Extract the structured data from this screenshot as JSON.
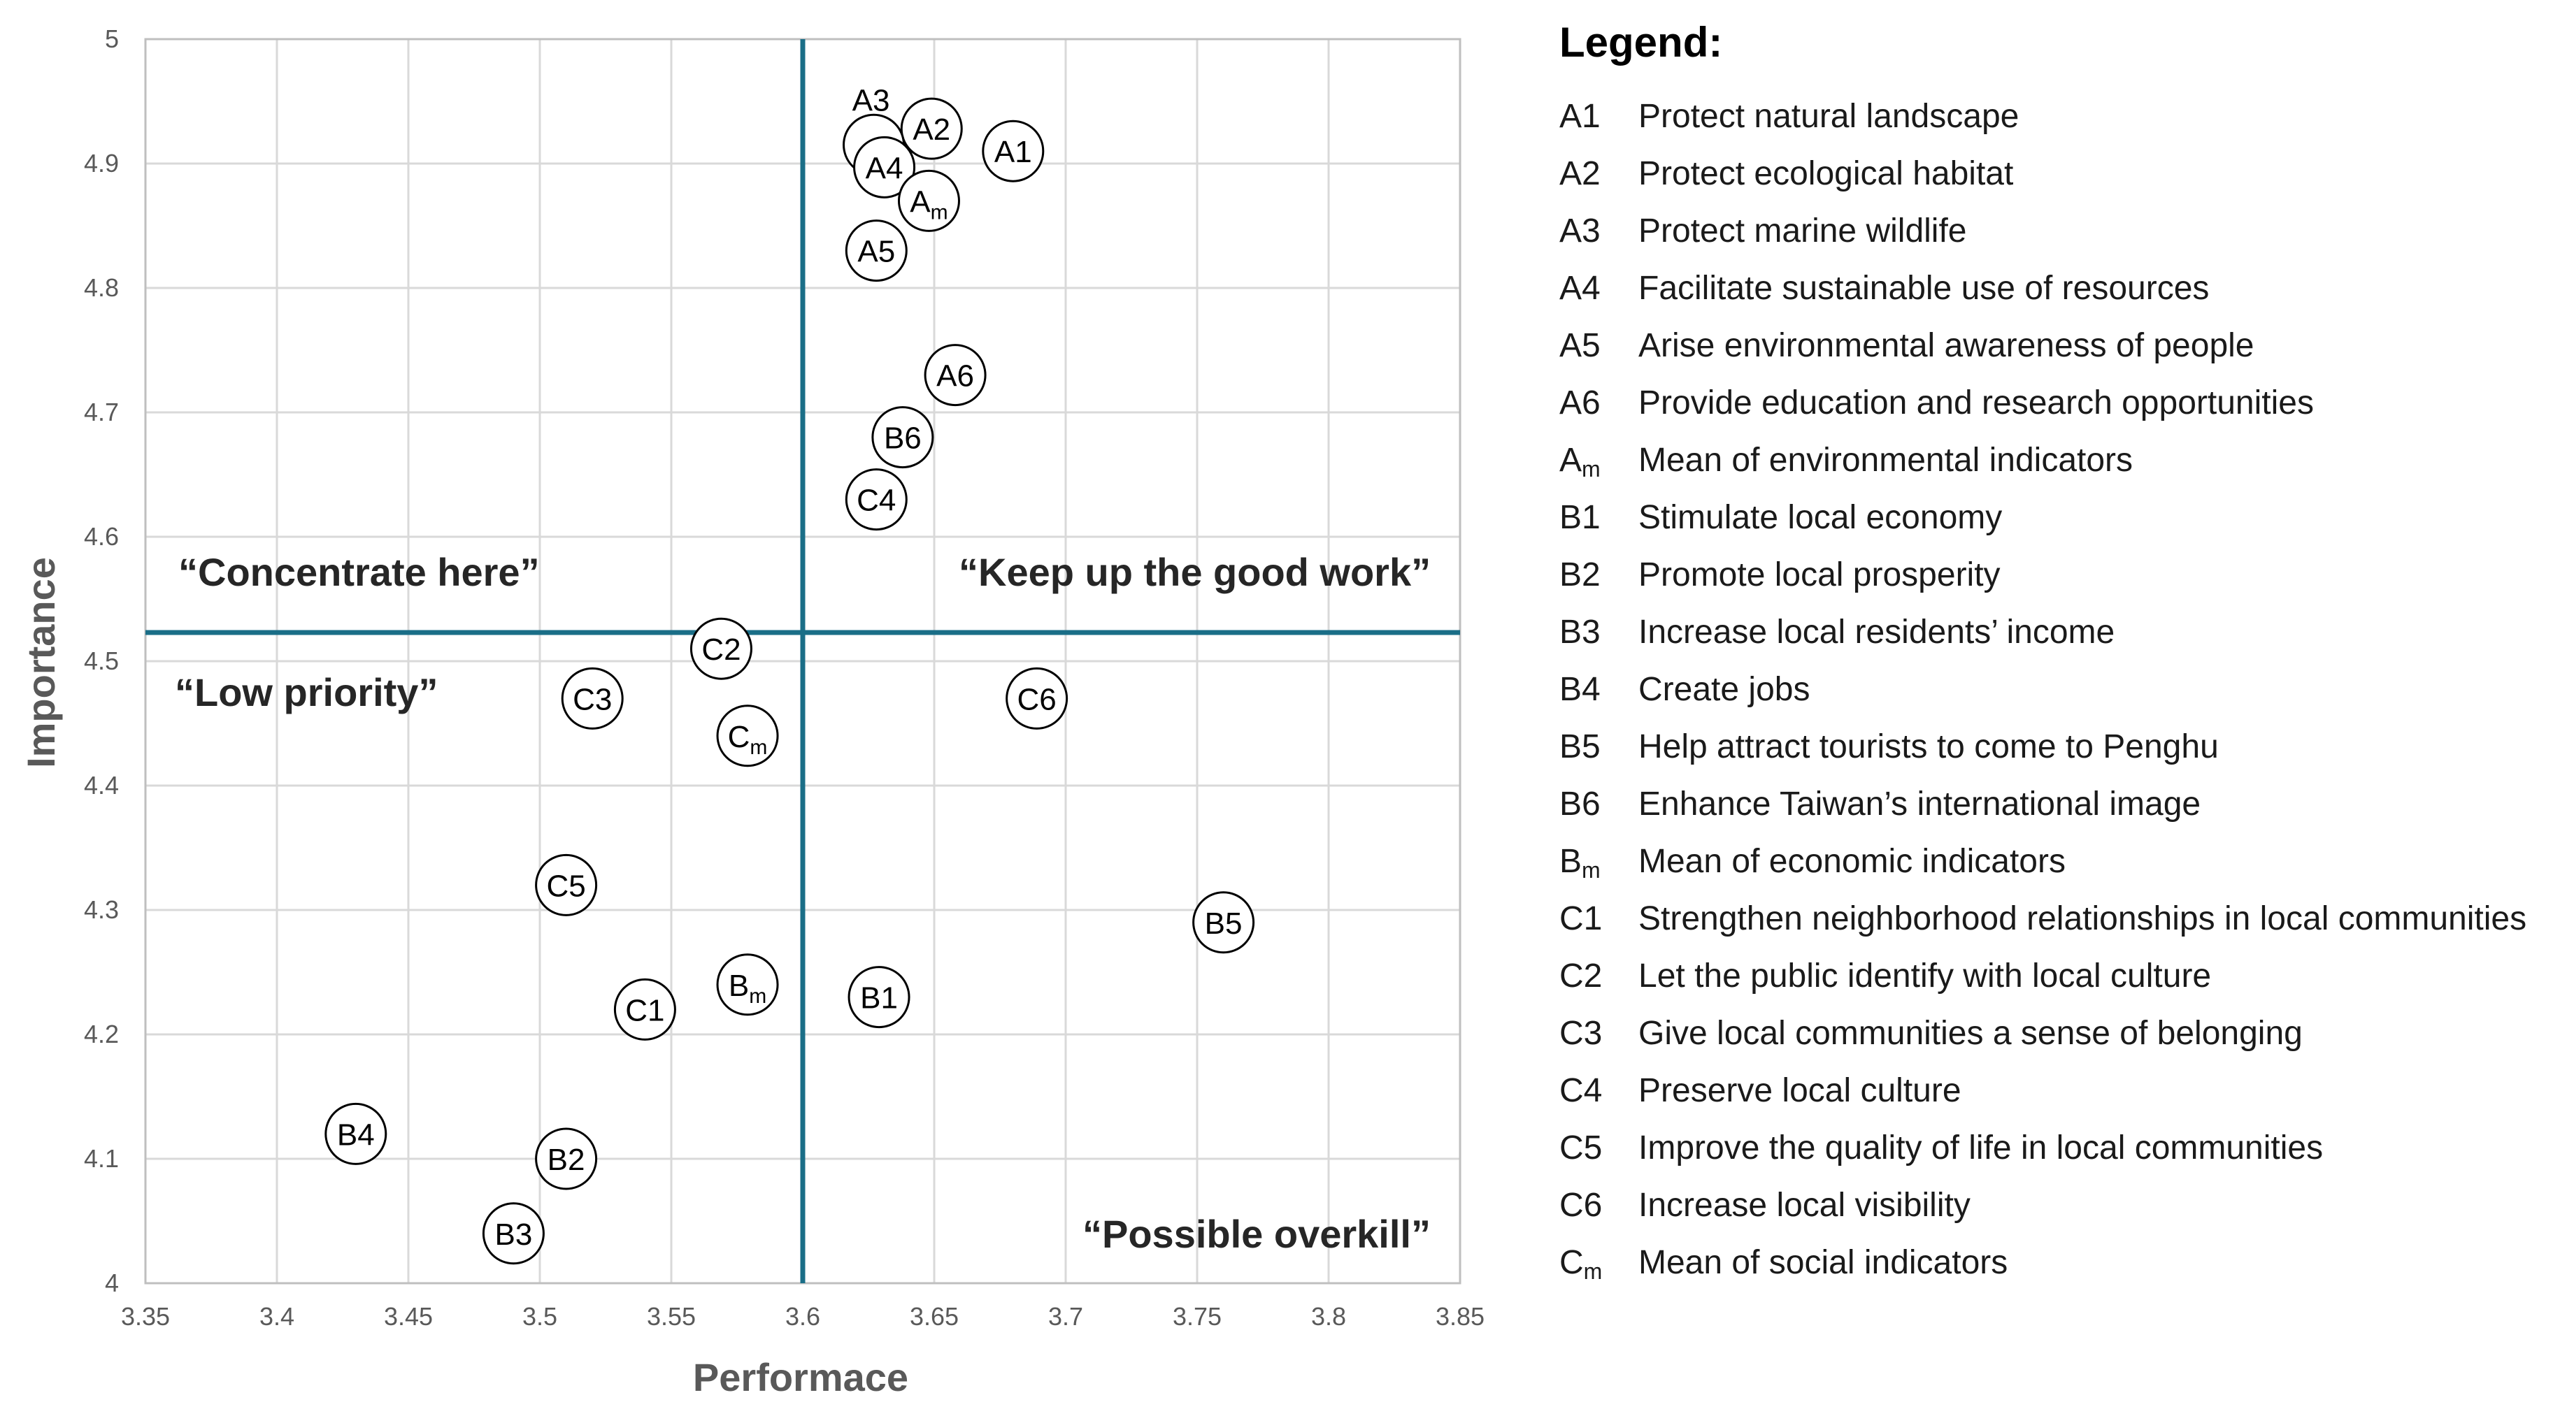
{
  "chart_data": {
    "type": "scatter",
    "xlabel": "Performace",
    "ylabel": "Importance",
    "xlim": [
      3.35,
      3.85
    ],
    "ylim": [
      4.0,
      5.0
    ],
    "x_ticks": [
      "3.35",
      "3.4",
      "3.45",
      "3.5",
      "3.55",
      "3.6",
      "3.65",
      "3.7",
      "3.75",
      "3.8",
      "3.85"
    ],
    "y_ticks": [
      "4",
      "4.1",
      "4.2",
      "4.3",
      "4.4",
      "4.5",
      "4.6",
      "4.7",
      "4.8",
      "4.9",
      "5"
    ],
    "grid": true,
    "divider_x": 3.6,
    "divider_y": 4.523,
    "quadrant_labels": {
      "top_left": "“Concentrate here”",
      "top_right": "“Keep up the good work”",
      "bottom_left": "“Low priority”",
      "bottom_right": "“Possible overkill”"
    },
    "points": [
      {
        "label": "A1",
        "x": 3.68,
        "y": 4.91
      },
      {
        "label": "A2",
        "x": 3.649,
        "y": 4.928
      },
      {
        "label": "A3",
        "x": 3.627,
        "y": 4.915
      },
      {
        "label": "A4",
        "x": 3.631,
        "y": 4.897
      },
      {
        "label": "Am",
        "x": 3.648,
        "y": 4.87
      },
      {
        "label": "A5",
        "x": 3.628,
        "y": 4.83
      },
      {
        "label": "A6",
        "x": 3.658,
        "y": 4.73
      },
      {
        "label": "B6",
        "x": 3.638,
        "y": 4.68
      },
      {
        "label": "C4",
        "x": 3.628,
        "y": 4.63
      },
      {
        "label": "C2",
        "x": 3.569,
        "y": 4.51
      },
      {
        "label": "C3",
        "x": 3.52,
        "y": 4.47
      },
      {
        "label": "C6",
        "x": 3.689,
        "y": 4.47
      },
      {
        "label": "Cm",
        "x": 3.579,
        "y": 4.44
      },
      {
        "label": "C5",
        "x": 3.51,
        "y": 4.32
      },
      {
        "label": "B5",
        "x": 3.76,
        "y": 4.29
      },
      {
        "label": "Bm",
        "x": 3.579,
        "y": 4.24
      },
      {
        "label": "B1",
        "x": 3.629,
        "y": 4.23
      },
      {
        "label": "C1",
        "x": 3.54,
        "y": 4.22
      },
      {
        "label": "B4",
        "x": 3.43,
        "y": 4.12
      },
      {
        "label": "B2",
        "x": 3.51,
        "y": 4.1
      },
      {
        "label": "B3",
        "x": 3.49,
        "y": 4.04
      }
    ],
    "outside_label": "A3",
    "colors": {
      "divider": "#1a6e87",
      "grid": "#d9d9d9",
      "marker_stroke": "#000000",
      "marker_fill": "#ffffff"
    }
  },
  "legend": {
    "title": "Legend:",
    "items": [
      {
        "code": "A1",
        "text": "Protect natural landscape"
      },
      {
        "code": "A2",
        "text": "Protect ecological habitat"
      },
      {
        "code": "A3",
        "text": "Protect marine wildlife"
      },
      {
        "code": "A4",
        "text": "Facilitate sustainable use of resources"
      },
      {
        "code": "A5",
        "text": "Arise environmental awareness of people"
      },
      {
        "code": "A6",
        "text": "Provide education and research opportunities"
      },
      {
        "code": "Am",
        "text": "Mean of environmental indicators"
      },
      {
        "code": "B1",
        "text": "Stimulate local economy"
      },
      {
        "code": "B2",
        "text": "Promote local prosperity"
      },
      {
        "code": "B3",
        "text": "Increase local residents’ income"
      },
      {
        "code": "B4",
        "text": "Create jobs"
      },
      {
        "code": "B5",
        "text": "Help attract tourists to come to Penghu"
      },
      {
        "code": "B6",
        "text": "Enhance Taiwan’s international image"
      },
      {
        "code": "Bm",
        "text": "Mean of economic indicators"
      },
      {
        "code": "C1",
        "text": "Strengthen neighborhood relationships in local communities"
      },
      {
        "code": "C2",
        "text": "Let the public identify with local culture"
      },
      {
        "code": "C3",
        "text": "Give local communities a sense of belonging"
      },
      {
        "code": "C4",
        "text": "Preserve local culture"
      },
      {
        "code": "C5",
        "text": "Improve the quality of life in local communities"
      },
      {
        "code": "C6",
        "text": "Increase local visibility"
      },
      {
        "code": "Cm",
        "text": "Mean of social indicators"
      }
    ]
  }
}
